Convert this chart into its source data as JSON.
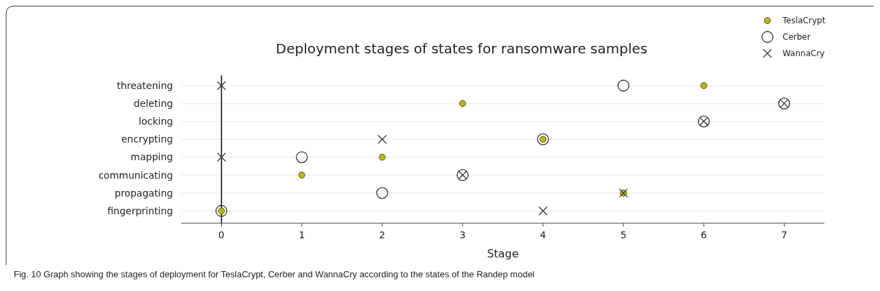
{
  "chart_data": {
    "type": "scatter",
    "orientation": "horizontal",
    "title": "Deployment stages of states for ransomware samples",
    "xlabel": "Stage",
    "categories": [
      "threatening",
      "deleting",
      "locking",
      "encrypting",
      "mapping",
      "communicating",
      "propagating",
      "fingerprinting"
    ],
    "series": [
      {
        "name": "TeslaCrypt",
        "color": "#b5b722",
        "marker": "circle",
        "values": [
          6,
          3,
          null,
          4,
          2,
          1,
          5,
          0
        ]
      },
      {
        "name": "Cerber",
        "color": "#333333",
        "marker": "circle-open",
        "values": [
          5,
          7,
          6,
          4,
          1,
          3,
          2,
          0
        ]
      },
      {
        "name": "WannaCry",
        "color": "#333333",
        "marker": "cross",
        "values": [
          0,
          7,
          6,
          2,
          0,
          3,
          5,
          4
        ]
      }
    ],
    "xlim": [
      -0.5,
      7.5
    ],
    "xticks": [
      0,
      1,
      2,
      3,
      4,
      5,
      6,
      7
    ],
    "grid": "y",
    "legend": "top right",
    "ref_lines": [
      {
        "axis": "x",
        "value": 0,
        "color": "#000000"
      }
    ],
    "annotations": [
      "Fig. 10  Graph showing the stages of deployment for TeslaCrypt, Cerber and WannaCry according to the states of the Randep model"
    ]
  }
}
